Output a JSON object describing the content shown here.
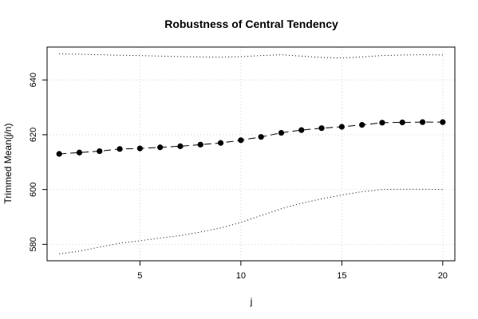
{
  "chart_data": {
    "type": "line",
    "title": "Robustness of Central Tendency",
    "xlabel": "j",
    "ylabel": "Trimmed Mean(j/n)",
    "xlim": [
      0.4,
      20.6
    ],
    "ylim": [
      574,
      652
    ],
    "x_ticks": [
      5,
      10,
      15,
      20
    ],
    "y_ticks": [
      580,
      600,
      620,
      640
    ],
    "grid": true,
    "x": [
      1,
      2,
      3,
      4,
      5,
      6,
      7,
      8,
      9,
      10,
      11,
      12,
      13,
      14,
      15,
      16,
      17,
      18,
      19,
      20
    ],
    "series": [
      {
        "style": "dashed-with-points",
        "values": [
          613.0,
          613.5,
          614.0,
          614.8,
          615.0,
          615.4,
          615.8,
          616.4,
          617.0,
          618.0,
          619.2,
          620.7,
          621.7,
          622.4,
          622.9,
          623.6,
          624.4,
          624.5,
          624.6,
          624.6
        ]
      },
      {
        "style": "dotted",
        "values": [
          649.5,
          649.4,
          649.2,
          649.0,
          648.9,
          648.7,
          648.5,
          648.4,
          648.3,
          648.5,
          648.9,
          649.2,
          648.7,
          648.2,
          648.0,
          648.4,
          648.9,
          649.1,
          649.2,
          649.1
        ]
      },
      {
        "style": "dotted",
        "values": [
          576.5,
          577.5,
          579.0,
          580.4,
          581.3,
          582.3,
          583.2,
          584.5,
          586.0,
          588.0,
          590.5,
          593.0,
          595.0,
          596.6,
          598.0,
          599.2,
          600.0,
          600.1,
          600.1,
          600.0
        ]
      }
    ]
  }
}
